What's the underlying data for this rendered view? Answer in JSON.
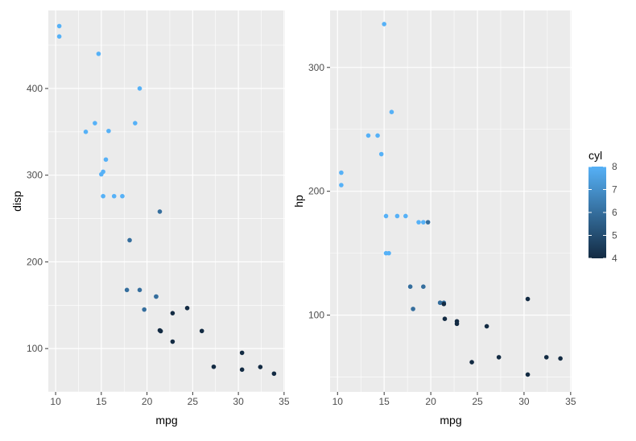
{
  "chart_data": [
    {
      "type": "scatter",
      "xlabel": "mpg",
      "ylabel": "disp",
      "xlim": [
        9.2,
        35.1
      ],
      "ylim": [
        50,
        490
      ],
      "xticks": [
        10,
        15,
        20,
        25,
        30,
        35
      ],
      "yticks": [
        100,
        200,
        300,
        400
      ],
      "grid": true,
      "points": [
        {
          "x": 21.0,
          "y": 160.0,
          "cyl": 6
        },
        {
          "x": 21.0,
          "y": 160.0,
          "cyl": 6
        },
        {
          "x": 22.8,
          "y": 108.0,
          "cyl": 4
        },
        {
          "x": 21.4,
          "y": 258.0,
          "cyl": 6
        },
        {
          "x": 18.7,
          "y": 360.0,
          "cyl": 8
        },
        {
          "x": 18.1,
          "y": 225.0,
          "cyl": 6
        },
        {
          "x": 14.3,
          "y": 360.0,
          "cyl": 8
        },
        {
          "x": 24.4,
          "y": 146.7,
          "cyl": 4
        },
        {
          "x": 22.8,
          "y": 140.8,
          "cyl": 4
        },
        {
          "x": 19.2,
          "y": 167.6,
          "cyl": 6
        },
        {
          "x": 17.8,
          "y": 167.6,
          "cyl": 6
        },
        {
          "x": 16.4,
          "y": 275.8,
          "cyl": 8
        },
        {
          "x": 17.3,
          "y": 275.8,
          "cyl": 8
        },
        {
          "x": 15.2,
          "y": 275.8,
          "cyl": 8
        },
        {
          "x": 10.4,
          "y": 472.0,
          "cyl": 8
        },
        {
          "x": 10.4,
          "y": 460.0,
          "cyl": 8
        },
        {
          "x": 14.7,
          "y": 440.0,
          "cyl": 8
        },
        {
          "x": 32.4,
          "y": 78.7,
          "cyl": 4
        },
        {
          "x": 30.4,
          "y": 75.7,
          "cyl": 4
        },
        {
          "x": 33.9,
          "y": 71.1,
          "cyl": 4
        },
        {
          "x": 21.5,
          "y": 120.1,
          "cyl": 4
        },
        {
          "x": 15.5,
          "y": 318.0,
          "cyl": 8
        },
        {
          "x": 15.2,
          "y": 304.0,
          "cyl": 8
        },
        {
          "x": 13.3,
          "y": 350.0,
          "cyl": 8
        },
        {
          "x": 19.2,
          "y": 400.0,
          "cyl": 8
        },
        {
          "x": 27.3,
          "y": 79.0,
          "cyl": 4
        },
        {
          "x": 26.0,
          "y": 120.3,
          "cyl": 4
        },
        {
          "x": 30.4,
          "y": 95.1,
          "cyl": 4
        },
        {
          "x": 15.8,
          "y": 351.0,
          "cyl": 8
        },
        {
          "x": 19.7,
          "y": 145.0,
          "cyl": 6
        },
        {
          "x": 15.0,
          "y": 301.0,
          "cyl": 8
        },
        {
          "x": 21.4,
          "y": 121.0,
          "cyl": 4
        }
      ]
    },
    {
      "type": "scatter",
      "xlabel": "mpg",
      "ylabel": "hp",
      "xlim": [
        9.2,
        35.1
      ],
      "ylim": [
        38,
        346
      ],
      "xticks": [
        10,
        15,
        20,
        25,
        30,
        35
      ],
      "yticks": [
        100,
        200,
        300
      ],
      "grid": true,
      "points": [
        {
          "x": 21.0,
          "y": 110,
          "cyl": 6
        },
        {
          "x": 21.0,
          "y": 110,
          "cyl": 6
        },
        {
          "x": 22.8,
          "y": 93,
          "cyl": 4
        },
        {
          "x": 21.4,
          "y": 110,
          "cyl": 6
        },
        {
          "x": 18.7,
          "y": 175,
          "cyl": 8
        },
        {
          "x": 18.1,
          "y": 105,
          "cyl": 6
        },
        {
          "x": 14.3,
          "y": 245,
          "cyl": 8
        },
        {
          "x": 24.4,
          "y": 62,
          "cyl": 4
        },
        {
          "x": 22.8,
          "y": 95,
          "cyl": 4
        },
        {
          "x": 19.2,
          "y": 123,
          "cyl": 6
        },
        {
          "x": 17.8,
          "y": 123,
          "cyl": 6
        },
        {
          "x": 16.4,
          "y": 180,
          "cyl": 8
        },
        {
          "x": 17.3,
          "y": 180,
          "cyl": 8
        },
        {
          "x": 15.2,
          "y": 180,
          "cyl": 8
        },
        {
          "x": 10.4,
          "y": 205,
          "cyl": 8
        },
        {
          "x": 10.4,
          "y": 215,
          "cyl": 8
        },
        {
          "x": 14.7,
          "y": 230,
          "cyl": 8
        },
        {
          "x": 32.4,
          "y": 66,
          "cyl": 4
        },
        {
          "x": 30.4,
          "y": 52,
          "cyl": 4
        },
        {
          "x": 33.9,
          "y": 65,
          "cyl": 4
        },
        {
          "x": 21.5,
          "y": 97,
          "cyl": 4
        },
        {
          "x": 15.5,
          "y": 150,
          "cyl": 8
        },
        {
          "x": 15.2,
          "y": 150,
          "cyl": 8
        },
        {
          "x": 13.3,
          "y": 245,
          "cyl": 8
        },
        {
          "x": 19.2,
          "y": 175,
          "cyl": 8
        },
        {
          "x": 27.3,
          "y": 66,
          "cyl": 4
        },
        {
          "x": 26.0,
          "y": 91,
          "cyl": 4
        },
        {
          "x": 30.4,
          "y": 113,
          "cyl": 4
        },
        {
          "x": 15.8,
          "y": 264,
          "cyl": 8
        },
        {
          "x": 19.7,
          "y": 175,
          "cyl": 6
        },
        {
          "x": 15.0,
          "y": 335,
          "cyl": 8
        },
        {
          "x": 21.4,
          "y": 109,
          "cyl": 4
        }
      ]
    }
  ],
  "legend": {
    "title": "cyl",
    "min": 4,
    "max": 8,
    "labels": [
      "8",
      "7",
      "6",
      "5",
      "4"
    ],
    "color_low": "#132B43",
    "color_high": "#56B1F7"
  },
  "style": {
    "panel_bg": "#EBEBEB",
    "grid_color": "#FFFFFF",
    "text_color": "#4D4D4D",
    "title_color": "#000000"
  }
}
